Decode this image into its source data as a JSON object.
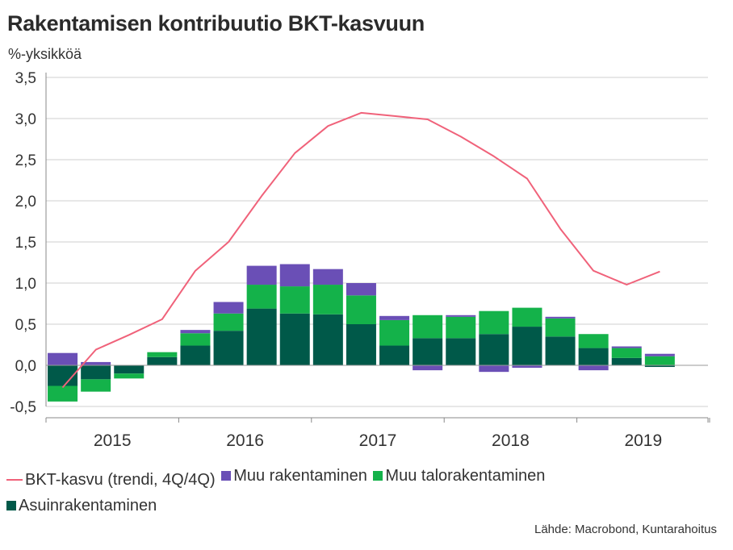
{
  "header": {
    "title": "Rakentamisen kontribuutio BKT-kasvuun",
    "ylabel": "%-yksikköä"
  },
  "source": "Lähde: Macrobond, Kuntarahoitus",
  "colors": {
    "line": "#f0627a",
    "muu_rakentaminen": "#6a4fb6",
    "muu_talorakentaminen": "#14b24a",
    "asuinrakentaminen": "#005949",
    "grid": "#cfcfcf",
    "axis": "#888888"
  },
  "chart_data": {
    "type": "bar",
    "stacked": true,
    "ylim": [
      -0.5,
      3.5
    ],
    "yticks": [
      "3,5",
      "3,0",
      "2,5",
      "2,0",
      "1,5",
      "1,0",
      "0,5",
      "0,0",
      "-0,5"
    ],
    "ytick_values": [
      3.5,
      3.0,
      2.5,
      2.0,
      1.5,
      1.0,
      0.5,
      0.0,
      -0.5
    ],
    "year_labels": [
      "2015",
      "2016",
      "2017",
      "2018",
      "2019"
    ],
    "grid": true,
    "legend_position": "bottom",
    "periods": [
      "2015Q1",
      "2015Q2",
      "2015Q3",
      "2015Q4",
      "2016Q1",
      "2016Q2",
      "2016Q3",
      "2016Q4",
      "2017Q1",
      "2017Q2",
      "2017Q3",
      "2017Q4",
      "2018Q1",
      "2018Q2",
      "2018Q3",
      "2018Q4",
      "2019Q1",
      "2019Q2",
      "2019Q3"
    ],
    "series": [
      {
        "name": "Asuinrakentaminen",
        "values": [
          -0.25,
          -0.17,
          -0.1,
          0.1,
          0.24,
          0.42,
          0.69,
          0.63,
          0.62,
          0.5,
          0.24,
          0.33,
          0.33,
          0.38,
          0.47,
          0.35,
          0.21,
          0.09,
          -0.02
        ]
      },
      {
        "name": "Muu talorakentaminen",
        "values": [
          -0.19,
          -0.15,
          -0.06,
          0.06,
          0.15,
          0.21,
          0.29,
          0.33,
          0.36,
          0.35,
          0.31,
          0.28,
          0.26,
          0.28,
          0.23,
          0.22,
          0.17,
          0.12,
          0.11
        ]
      },
      {
        "name": "Muu rakentaminen",
        "values": [
          0.15,
          0.04,
          0.0,
          0.0,
          0.04,
          0.14,
          0.23,
          0.27,
          0.19,
          0.15,
          0.05,
          -0.06,
          0.02,
          -0.08,
          -0.03,
          0.02,
          -0.06,
          0.02,
          0.03
        ]
      }
    ],
    "line": {
      "name": "BKT-kasvu (trendi, 4Q/4Q)",
      "values": [
        -0.27,
        0.19,
        0.37,
        0.56,
        1.15,
        1.5,
        2.06,
        2.58,
        2.91,
        3.07,
        3.03,
        2.99,
        2.78,
        2.54,
        2.27,
        1.66,
        1.15,
        0.98,
        1.14
      ]
    }
  },
  "legend": [
    {
      "label": "BKT-kasvu (trendi, 4Q/4Q)",
      "kind": "line",
      "color": "#f0627a"
    },
    {
      "label": "Muu rakentaminen",
      "kind": "box",
      "color": "#6a4fb6"
    },
    {
      "label": "Muu talorakentaminen",
      "kind": "box",
      "color": "#14b24a"
    },
    {
      "label": "Asuinrakentaminen",
      "kind": "box",
      "color": "#005949"
    }
  ]
}
